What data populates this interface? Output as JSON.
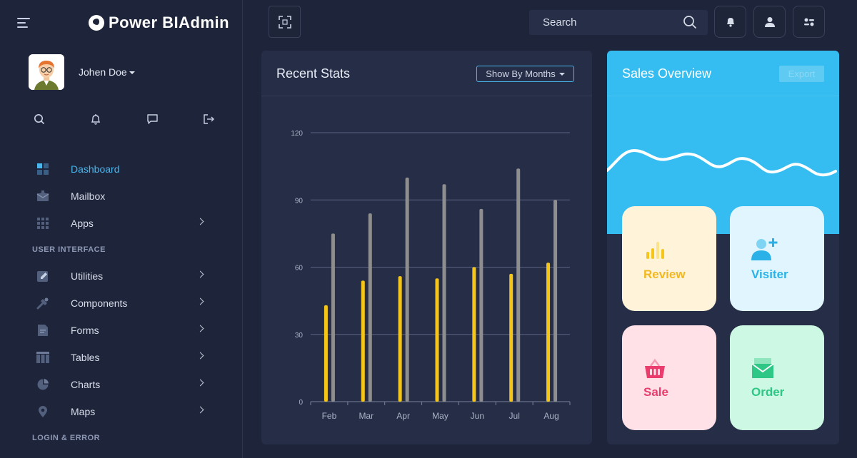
{
  "brand": {
    "name": "Power BIAdmin"
  },
  "user": {
    "name": "Johen Doe"
  },
  "sidebar": {
    "quick_icons": [
      "search-icon",
      "bell-icon",
      "chat-icon",
      "logout-icon"
    ],
    "items": [
      {
        "label": "Dashboard",
        "icon": "dashboard-icon",
        "active": true,
        "chevron": false
      },
      {
        "label": "Mailbox",
        "icon": "mail-icon",
        "chevron": false
      },
      {
        "label": "Apps",
        "icon": "apps-grid-icon",
        "chevron": true
      }
    ],
    "section_ui": "USER INTERFACE",
    "ui_items": [
      {
        "label": "Utilities",
        "icon": "pencil-icon",
        "chevron": true
      },
      {
        "label": "Components",
        "icon": "tools-icon",
        "chevron": true
      },
      {
        "label": "Forms",
        "icon": "form-icon",
        "chevron": true
      },
      {
        "label": "Tables",
        "icon": "table-icon",
        "chevron": true
      },
      {
        "label": "Charts",
        "icon": "pie-chart-icon",
        "chevron": true
      },
      {
        "label": "Maps",
        "icon": "map-pin-icon",
        "chevron": true
      }
    ],
    "section_login": "LOGIN & ERROR"
  },
  "header": {
    "search_placeholder": "Search"
  },
  "stats": {
    "title": "Recent Stats",
    "filter_label": "Show By Months"
  },
  "sales": {
    "title": "Sales Overview",
    "export_label": "Export",
    "tiles": [
      {
        "label": "Review"
      },
      {
        "label": "Visiter"
      },
      {
        "label": "Sale"
      },
      {
        "label": "Order"
      }
    ]
  },
  "colors": {
    "accent": "#4ab6ee",
    "bar_primary": "#f5c518",
    "bar_secondary": "#8e8e8e",
    "sales_header": "#35bdf1"
  },
  "chart_data": {
    "type": "bar",
    "categories": [
      "Feb",
      "Mar",
      "Apr",
      "May",
      "Jun",
      "Jul",
      "Aug"
    ],
    "series": [
      {
        "values": [
          43,
          54,
          56,
          55,
          60,
          57,
          62
        ]
      },
      {
        "values": [
          75,
          84,
          100,
          97,
          86,
          104,
          90
        ]
      }
    ],
    "yticks": [
      0,
      30,
      60,
      90,
      120
    ],
    "ylim": [
      0,
      120
    ],
    "grid": true,
    "title": "",
    "xlabel": "",
    "ylabel": ""
  }
}
